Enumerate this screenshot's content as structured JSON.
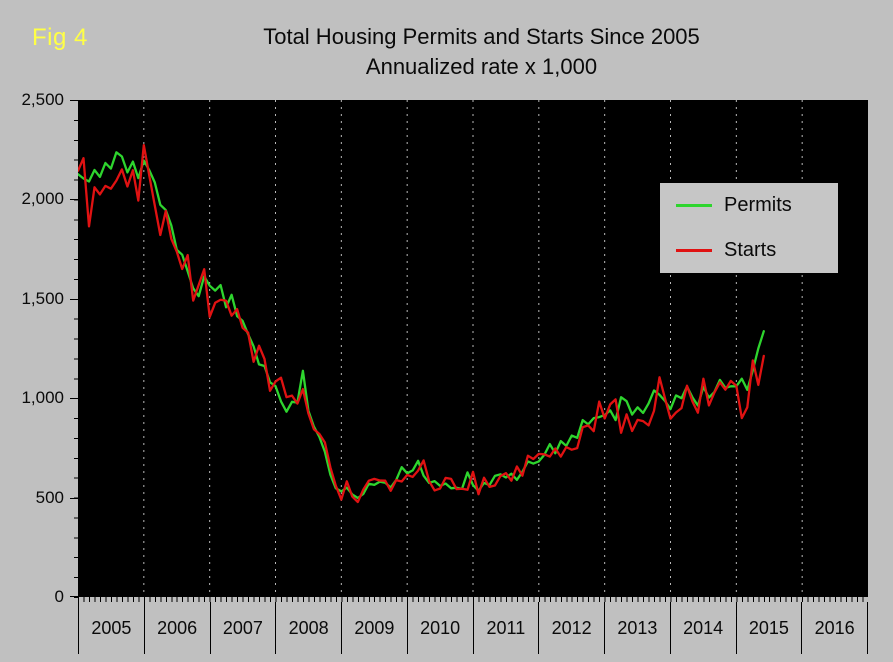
{
  "fig_label": "Fig 4",
  "colors": {
    "background": "#c0c0c0",
    "plot_background": "#000000",
    "permits_line": "#2ed52e",
    "starts_line": "#e01212",
    "fig_label": "#ffff45",
    "gridline": "#e8e8e8",
    "legend_background": "#c6c6c6"
  },
  "chart_data": {
    "type": "line",
    "title": "Total Housing Permits and Starts Since 2005",
    "subtitle": "Annualized rate x 1,000",
    "x_unit": "month",
    "x_start": "2005-01",
    "x_end": "2015-06",
    "x_tick_labels": [
      "2005",
      "2006",
      "2007",
      "2008",
      "2009",
      "2010",
      "2011",
      "2012",
      "2013",
      "2014",
      "2015",
      "2016"
    ],
    "xlim_years": [
      2005,
      2017
    ],
    "ylim": [
      0,
      2500
    ],
    "y_ticks": [
      0,
      500,
      1000,
      1500,
      2000,
      2500
    ],
    "y_tick_labels": [
      "2,500",
      "2,000",
      "1,500",
      "1,000",
      "500",
      "0"
    ],
    "grid": "vertical-dashed-white",
    "legend_position": "upper-right-inside",
    "series": [
      {
        "name": "Permits",
        "color": "#2ed52e",
        "values": [
          2127,
          2105,
          2090,
          2148,
          2113,
          2183,
          2155,
          2237,
          2216,
          2136,
          2190,
          2107,
          2195,
          2147,
          2085,
          1973,
          1946,
          1869,
          1746,
          1722,
          1638,
          1553,
          1513,
          1613,
          1566,
          1541,
          1569,
          1457,
          1520,
          1413,
          1389,
          1322,
          1261,
          1170,
          1162,
          1080,
          1061,
          984,
          932,
          982,
          978,
          1138,
          937,
          857,
          805,
          730,
          615,
          547,
          531,
          550,
          516,
          498,
          518,
          570,
          564,
          580,
          575,
          551,
          589,
          653,
          622,
          637,
          685,
          610,
          574,
          583,
          559,
          571,
          547,
          550,
          544,
          627,
          563,
          534,
          574,
          563,
          609,
          617,
          601,
          620,
          589,
          630,
          682,
          671,
          682,
          715,
          769,
          723,
          784,
          760,
          812,
          801,
          890,
          868,
          900,
          905,
          915,
          939,
          890,
          1005,
          985,
          918,
          954,
          926,
          974,
          1039,
          1017,
          986,
          945,
          1014,
          1000,
          1059,
          1005,
          963,
          1057,
          1003,
          1031,
          1092,
          1052,
          1060,
          1060,
          1098,
          1042,
          1140,
          1250,
          1337
        ]
      },
      {
        "name": "Starts",
        "color": "#e01212",
        "values": [
          2144,
          2207,
          1864,
          2061,
          2025,
          2068,
          2054,
          2095,
          2151,
          2065,
          2147,
          1994,
          2273,
          2119,
          1969,
          1821,
          1942,
          1802,
          1737,
          1650,
          1720,
          1491,
          1570,
          1649,
          1409,
          1480,
          1495,
          1490,
          1415,
          1448,
          1354,
          1330,
          1183,
          1264,
          1197,
          1037,
          1084,
          1103,
          1005,
          1013,
          973,
          1046,
          923,
          844,
          820,
          777,
          652,
          560,
          490,
          582,
          505,
          478,
          540,
          585,
          594,
          586,
          585,
          534,
          588,
          581,
          614,
          604,
          636,
          687,
          583,
          536,
          546,
          599,
          594,
          543,
          545,
          539,
          630,
          517,
          600,
          554,
          561,
          608,
          623,
          585,
          657,
          610,
          711,
          694,
          720,
          718,
          706,
          747,
          706,
          754,
          741,
          749,
          854,
          863,
          834,
          983,
          898,
          969,
          994,
          826,
          919,
          835,
          891,
          885,
          863,
          936,
          1105,
          999,
          897,
          928,
          950,
          1063,
          984,
          927,
          1098,
          964,
          1028,
          1080,
          1043,
          1087,
          1063,
          900,
          954,
          1190,
          1067,
          1213
        ]
      }
    ]
  }
}
